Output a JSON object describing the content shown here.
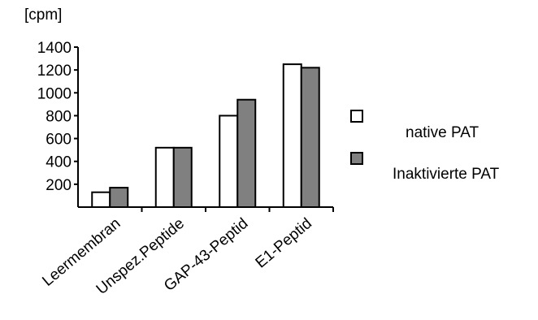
{
  "chart_data": {
    "type": "bar",
    "ylabel": "[cpm]",
    "categories": [
      "Leermembran",
      "Unspez.Peptide",
      "GAP-43-Peptid",
      "E1-Peptid"
    ],
    "series": [
      {
        "name": "native PAT",
        "values": [
          130,
          520,
          800,
          1250
        ],
        "color": "#ffffff"
      },
      {
        "name": "Inaktivierte PAT",
        "values": [
          170,
          520,
          940,
          1220
        ],
        "color": "#808080"
      }
    ],
    "ylim": [
      0,
      1400
    ],
    "yticks": [
      200,
      400,
      600,
      800,
      1000,
      1200,
      1400
    ],
    "grid": false,
    "legend": "right"
  }
}
